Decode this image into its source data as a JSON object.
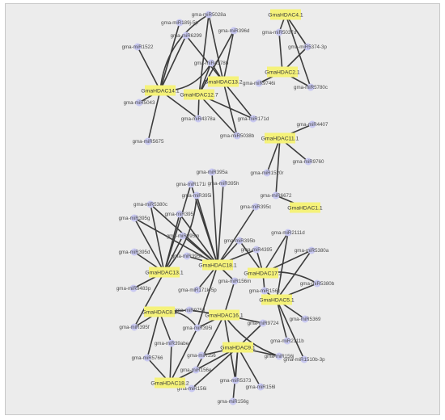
{
  "network": {
    "hdac_nodes": [
      {
        "id": "h141",
        "label": "GmaHDAC14.1"
      },
      {
        "id": "h132",
        "label": "GmaHDAC13.2"
      },
      {
        "id": "h127",
        "label": "GmaHDAC12.7"
      },
      {
        "id": "h41",
        "label": "GmaHDAC4.1"
      },
      {
        "id": "h21",
        "label": "GmaHDAC2.1"
      },
      {
        "id": "h111",
        "label": "GmaHDAC11.1"
      },
      {
        "id": "h11",
        "label": "GmaHDAC1.1"
      },
      {
        "id": "h131",
        "label": "GmaHDAC13.1"
      },
      {
        "id": "h181",
        "label": "GmaHDAC18.1"
      },
      {
        "id": "h172",
        "label": "GmaHDAC17.2"
      },
      {
        "id": "h51",
        "label": "GmaHDAC5.1"
      },
      {
        "id": "h81",
        "label": "GmaHDAC8.1"
      },
      {
        "id": "h16",
        "label": "GmaHDAC16.1"
      },
      {
        "id": "h19",
        "label": "GmaHDAC9.1"
      },
      {
        "id": "h182",
        "label": "GmaHDAC18.2"
      }
    ],
    "mirna_nodes": [
      {
        "id": "m189j",
        "label": "gma-miR189j-5p"
      },
      {
        "id": "m5028a",
        "label": "gma-miR5028a"
      },
      {
        "id": "m6299",
        "label": "gma-miR6299"
      },
      {
        "id": "m396d",
        "label": "gma-miR396d"
      },
      {
        "id": "m1522",
        "label": "gma-miR1522"
      },
      {
        "id": "m4378b",
        "label": "gma-miR4378b"
      },
      {
        "id": "m5043",
        "label": "gma-miR5043"
      },
      {
        "id": "m4378a",
        "label": "gma-miR4378a"
      },
      {
        "id": "m171d",
        "label": "gma-miR171d"
      },
      {
        "id": "m5675",
        "label": "gma-miR5675"
      },
      {
        "id": "m5038b",
        "label": "gma-miR5038b"
      },
      {
        "id": "m5037d",
        "label": "gma-miR5037d"
      },
      {
        "id": "m5374",
        "label": "gma-miR5374-3p"
      },
      {
        "id": "m9746",
        "label": "gma-miR9746i"
      },
      {
        "id": "m5780c",
        "label": "gma-miR5780c"
      },
      {
        "id": "m4407",
        "label": "gma-miR4407"
      },
      {
        "id": "m1520r",
        "label": "gma-miR1520r"
      },
      {
        "id": "m9760",
        "label": "gma-miR9760"
      },
      {
        "id": "m6672",
        "label": "gma-miR6672"
      },
      {
        "id": "m171i",
        "label": "gma-miR171i"
      },
      {
        "id": "m395a",
        "label": "gma-miR395a"
      },
      {
        "id": "m395h",
        "label": "gma-miR395h"
      },
      {
        "id": "m5380c",
        "label": "gma-miR5380c"
      },
      {
        "id": "m395i",
        "label": "gma-miR395i"
      },
      {
        "id": "m395c",
        "label": "gma-miR395c"
      },
      {
        "id": "m395g",
        "label": "gma-miR395g"
      },
      {
        "id": "m395j",
        "label": "gma-miR395j"
      },
      {
        "id": "m2111d",
        "label": "gma-miR2111d"
      },
      {
        "id": "m395m",
        "label": "gma-miR395m"
      },
      {
        "id": "m395b",
        "label": "gma-miR395b"
      },
      {
        "id": "m395d",
        "label": "gma-miR395d"
      },
      {
        "id": "m395k",
        "label": "gma-miR395k"
      },
      {
        "id": "m4395",
        "label": "gma-miR4395"
      },
      {
        "id": "m5380a",
        "label": "gma-miR5380a"
      },
      {
        "id": "m395f",
        "label": "gma-miR395f"
      },
      {
        "id": "m5380b",
        "label": "gma-miR5380b"
      },
      {
        "id": "m156m",
        "label": "gma-miR156m"
      },
      {
        "id": "m9483",
        "label": "gma-miR9483p"
      },
      {
        "id": "m171k",
        "label": "gma-miR171k-5p"
      },
      {
        "id": "m156c",
        "label": "gma-miR156c"
      },
      {
        "id": "m5369",
        "label": "gma-miR5369"
      },
      {
        "id": "m9758",
        "label": "gma-miR9758"
      },
      {
        "id": "m9724",
        "label": "gma-miR9724"
      },
      {
        "id": "m395l",
        "label": "gma-miR395l"
      },
      {
        "id": "m2111b",
        "label": "gma-miR2111b"
      },
      {
        "id": "m1510",
        "label": "gma-miR1510b-3p"
      },
      {
        "id": "m39abe",
        "label": "gma-miR39abe"
      },
      {
        "id": "m5766",
        "label": "gma-miR5766"
      },
      {
        "id": "m156j",
        "label": "gma-miR156j"
      },
      {
        "id": "m156e",
        "label": "gma-miR156e"
      },
      {
        "id": "m5373",
        "label": "gma-miR5373"
      },
      {
        "id": "m156l",
        "label": "gma-miR156l"
      },
      {
        "id": "m156i",
        "label": "gma-miR156i"
      },
      {
        "id": "m156g",
        "label": "gma-miR156g"
      },
      {
        "id": "m156x",
        "label": "gma-miR156"
      }
    ],
    "edges": [
      [
        "h141",
        "m189j"
      ],
      [
        "h141",
        "m6299"
      ],
      [
        "h141",
        "m1522"
      ],
      [
        "h141",
        "m5043"
      ],
      [
        "h141",
        "m4378b"
      ],
      [
        "h141",
        "m4378a"
      ],
      [
        "h141",
        "m5675"
      ],
      [
        "h141",
        "m5028a"
      ],
      [
        "h127",
        "m5028a"
      ],
      [
        "h127",
        "m396d"
      ],
      [
        "h127",
        "m4378b"
      ],
      [
        "h127",
        "m4378a"
      ],
      [
        "h127",
        "m5038b"
      ],
      [
        "h127",
        "m171d"
      ],
      [
        "h132",
        "m5028a"
      ],
      [
        "h132",
        "m396d"
      ],
      [
        "h132",
        "m4378b"
      ],
      [
        "h132",
        "m5038b"
      ],
      [
        "h132",
        "m171d"
      ],
      [
        "h132",
        "m6299"
      ],
      [
        "h41",
        "m5037d"
      ],
      [
        "h41",
        "m5374"
      ],
      [
        "h41",
        "m5780c"
      ],
      [
        "h21",
        "m5037d"
      ],
      [
        "h21",
        "m9746"
      ],
      [
        "h21",
        "m5374"
      ],
      [
        "h21",
        "m5780c"
      ],
      [
        "h111",
        "m4407"
      ],
      [
        "h111",
        "m1520r"
      ],
      [
        "h111",
        "m9760"
      ],
      [
        "h111",
        "m6672"
      ],
      [
        "h11",
        "m6672"
      ],
      [
        "h131",
        "m171i"
      ],
      [
        "h131",
        "m395g"
      ],
      [
        "h131",
        "m5380c"
      ],
      [
        "h131",
        "m395d"
      ],
      [
        "h131",
        "m395m"
      ],
      [
        "h131",
        "m9483"
      ],
      [
        "h131",
        "m395f"
      ],
      [
        "h131",
        "m395i"
      ],
      [
        "h131",
        "m395j"
      ],
      [
        "h181",
        "m395a"
      ],
      [
        "h181",
        "m395h"
      ],
      [
        "h181",
        "m395i"
      ],
      [
        "h181",
        "m395c"
      ],
      [
        "h181",
        "m395j"
      ],
      [
        "h181",
        "m395m"
      ],
      [
        "h181",
        "m395b"
      ],
      [
        "h181",
        "m395k"
      ],
      [
        "h181",
        "m4395"
      ],
      [
        "h181",
        "m171k"
      ],
      [
        "h181",
        "m156m"
      ],
      [
        "h181",
        "m395l"
      ],
      [
        "h181",
        "m395g"
      ],
      [
        "h181",
        "m5380c"
      ],
      [
        "h181",
        "m171i"
      ],
      [
        "h172",
        "m2111d"
      ],
      [
        "h172",
        "m4395"
      ],
      [
        "h172",
        "m156c"
      ],
      [
        "h172",
        "m5380a"
      ],
      [
        "h172",
        "m5380b"
      ],
      [
        "h172",
        "m395b"
      ],
      [
        "h51",
        "m2111d"
      ],
      [
        "h51",
        "m5380a"
      ],
      [
        "h51",
        "m5380b"
      ],
      [
        "h51",
        "m5369"
      ],
      [
        "h51",
        "m2111b"
      ],
      [
        "h51",
        "m1510"
      ],
      [
        "h51",
        "m156c"
      ],
      [
        "h81",
        "m395f"
      ],
      [
        "h81",
        "m39abe"
      ],
      [
        "h81",
        "m9758"
      ],
      [
        "h81",
        "m5766"
      ],
      [
        "h81",
        "m395l"
      ],
      [
        "h16",
        "m156m"
      ],
      [
        "h16",
        "m9758"
      ],
      [
        "h16",
        "m9724"
      ],
      [
        "h16",
        "m156e"
      ],
      [
        "h16",
        "m5373"
      ],
      [
        "h16",
        "m156j"
      ],
      [
        "h16",
        "m395l"
      ],
      [
        "h19",
        "m156j"
      ],
      [
        "h19",
        "m156l"
      ],
      [
        "h19",
        "m156i"
      ],
      [
        "h19",
        "m156g"
      ],
      [
        "h19",
        "m156x"
      ],
      [
        "h19",
        "m156e"
      ],
      [
        "h19",
        "m5373"
      ],
      [
        "h19",
        "m9724"
      ],
      [
        "h182",
        "m5766"
      ],
      [
        "h182",
        "m156e"
      ],
      [
        "h182",
        "m39abe"
      ],
      [
        "h182",
        "m395l"
      ]
    ]
  }
}
